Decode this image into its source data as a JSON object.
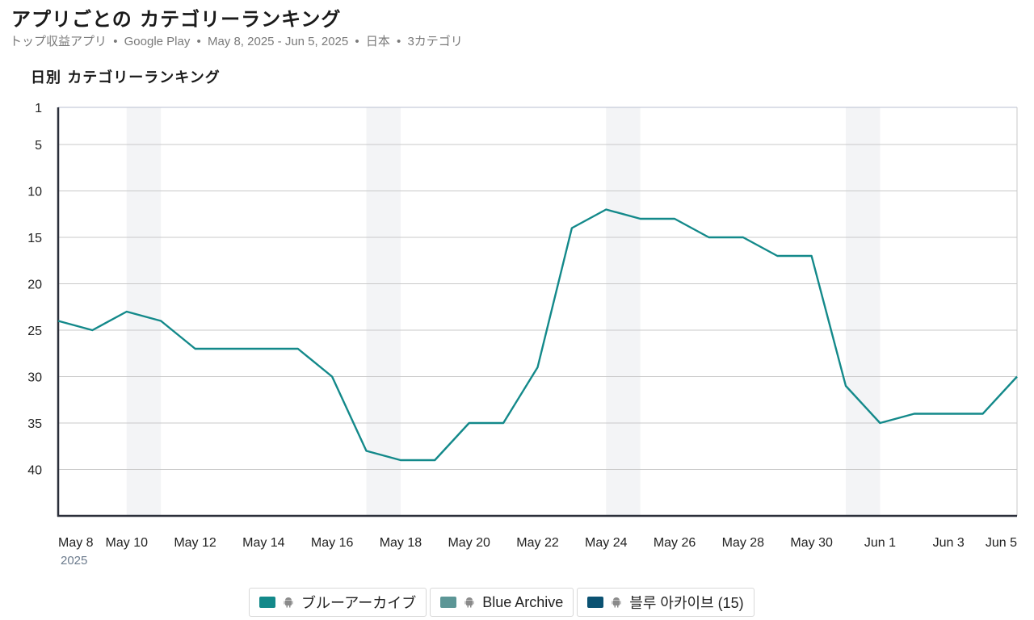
{
  "header": {
    "title": "アプリごとの カテゴリーランキング",
    "subtitle_parts": [
      "トップ収益アプリ",
      "Google Play",
      "May 8, 2025 - Jun 5, 2025",
      "日本",
      "3カテゴリ"
    ],
    "separator": "•"
  },
  "chart_heading": "日別 カテゴリーランキング",
  "legend": {
    "items": [
      {
        "label": "ブルーアーカイブ",
        "color": "#13898a",
        "icon": "android-icon"
      },
      {
        "label": "Blue Archive",
        "color": "#5c9696",
        "icon": "android-icon"
      },
      {
        "label": "블루 아카이브 (15)",
        "color": "#0b5272",
        "icon": "android-icon"
      }
    ]
  },
  "chart_data": {
    "type": "line",
    "y_inverted": true,
    "ylim": [
      1,
      45
    ],
    "yticks": [
      1,
      5,
      10,
      15,
      20,
      25,
      30,
      35,
      40
    ],
    "x": [
      "May 8",
      "May 9",
      "May 10",
      "May 11",
      "May 12",
      "May 13",
      "May 14",
      "May 15",
      "May 16",
      "May 17",
      "May 18",
      "May 19",
      "May 20",
      "May 21",
      "May 22",
      "May 23",
      "May 24",
      "May 25",
      "May 26",
      "May 27",
      "May 28",
      "May 29",
      "May 30",
      "May 31",
      "Jun 1",
      "Jun 2",
      "Jun 3",
      "Jun 4",
      "Jun 5"
    ],
    "xtick_labels": [
      "May 8",
      "May 10",
      "May 12",
      "May 14",
      "May 16",
      "May 18",
      "May 20",
      "May 22",
      "May 24",
      "May 26",
      "May 28",
      "May 30",
      "Jun 1",
      "Jun 3",
      "Jun 5"
    ],
    "xtick_year": "2025",
    "weekend_bands": [
      [
        "May 10",
        "May 11"
      ],
      [
        "May 17",
        "May 18"
      ],
      [
        "May 24",
        "May 25"
      ],
      [
        "May 31",
        "Jun 1"
      ]
    ],
    "series": [
      {
        "name": "ブルーアーカイブ",
        "color": "#13898a",
        "values": [
          24,
          25,
          23,
          24,
          27,
          27,
          27,
          27,
          30,
          38,
          39,
          39,
          35,
          35,
          29,
          14,
          12,
          13,
          13,
          15,
          15,
          17,
          17,
          31,
          35,
          34,
          34,
          34,
          30
        ]
      }
    ]
  }
}
